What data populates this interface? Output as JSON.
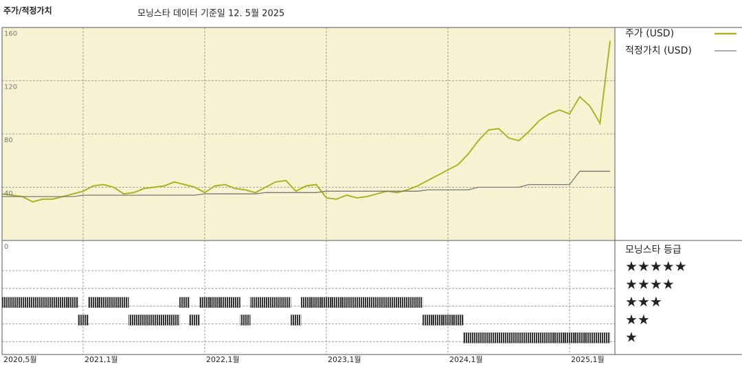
{
  "chart_data": {
    "type": "line",
    "title": "주가/적정가치",
    "subtitle": "모닝스타 데이터 기준일 12. 5월 2025",
    "x": [
      "2020-05",
      "2020-06",
      "2020-07",
      "2020-08",
      "2020-09",
      "2020-10",
      "2020-11",
      "2020-12",
      "2021-01",
      "2021-02",
      "2021-03",
      "2021-04",
      "2021-05",
      "2021-06",
      "2021-07",
      "2021-08",
      "2021-09",
      "2021-10",
      "2021-11",
      "2021-12",
      "2022-01",
      "2022-02",
      "2022-03",
      "2022-04",
      "2022-05",
      "2022-06",
      "2022-07",
      "2022-08",
      "2022-09",
      "2022-10",
      "2022-11",
      "2022-12",
      "2023-01",
      "2023-02",
      "2023-03",
      "2023-04",
      "2023-05",
      "2023-06",
      "2023-07",
      "2023-08",
      "2023-09",
      "2023-10",
      "2023-11",
      "2023-12",
      "2024-01",
      "2024-02",
      "2024-03",
      "2024-04",
      "2024-05",
      "2024-06",
      "2024-07",
      "2024-08",
      "2024-09",
      "2024-10",
      "2024-11",
      "2024-12",
      "2025-01",
      "2025-02",
      "2025-03",
      "2025-04",
      "2025-05"
    ],
    "xticks": [
      {
        "value": "2020-05",
        "label": "2020,5월"
      },
      {
        "value": "2021-01",
        "label": "2021,1월"
      },
      {
        "value": "2022-01",
        "label": "2022,1월"
      },
      {
        "value": "2023-01",
        "label": "2023,1월"
      },
      {
        "value": "2024-01",
        "label": "2024,1월"
      },
      {
        "value": "2025-01",
        "label": "2025,1월"
      }
    ],
    "series": [
      {
        "name": "주가 (USD)",
        "color": "#a9b423",
        "values": [
          35,
          34,
          33,
          29,
          31,
          31,
          33,
          35,
          37,
          41,
          42,
          40,
          35,
          36,
          39,
          40,
          41,
          44,
          42,
          40,
          36,
          41,
          42,
          39,
          38,
          36,
          40,
          44,
          45,
          37,
          41,
          42,
          32,
          31,
          34,
          32,
          33,
          35,
          37,
          36,
          38,
          41,
          45,
          49,
          53,
          57,
          65,
          75,
          83,
          84,
          77,
          75,
          82,
          90,
          95,
          98,
          95,
          108,
          101,
          88,
          150
        ]
      },
      {
        "name": "적정가치 (USD)",
        "color": "#777777",
        "values": [
          33,
          33,
          33,
          33,
          33,
          33,
          33,
          33,
          34,
          34,
          34,
          34,
          34,
          34,
          34,
          34,
          34,
          34,
          34,
          34,
          35,
          35,
          35,
          35,
          35,
          35,
          36,
          36,
          36,
          36,
          36,
          36,
          37,
          37,
          37,
          37,
          37,
          37,
          37,
          37,
          37,
          37,
          38,
          38,
          38,
          38,
          38,
          40,
          40,
          40,
          40,
          40,
          42,
          42,
          42,
          42,
          42,
          52,
          52,
          52,
          52
        ]
      }
    ],
    "ylim": [
      0,
      160
    ],
    "yticks": [
      0,
      40,
      80,
      120,
      160
    ],
    "grid": true,
    "background": "#f7f3d2",
    "rating_title": "모닝스타 등급",
    "rating_levels": [
      "★★★★★",
      "★★★★",
      "★★★",
      "★★",
      "★"
    ],
    "rating_color": "#333333",
    "ratings": [
      3,
      3,
      3,
      3,
      3,
      3,
      3,
      3,
      2,
      3,
      3,
      3,
      3,
      2,
      2,
      2,
      2,
      2,
      3,
      2,
      3,
      3,
      3,
      3,
      2,
      3,
      3,
      3,
      3,
      2,
      3,
      3,
      3,
      3,
      3,
      3,
      3,
      3,
      3,
      3,
      3,
      3,
      2,
      2,
      2,
      2,
      1,
      1,
      1,
      1,
      1,
      1,
      1,
      1,
      1,
      1,
      1,
      1,
      1,
      1,
      1
    ]
  }
}
